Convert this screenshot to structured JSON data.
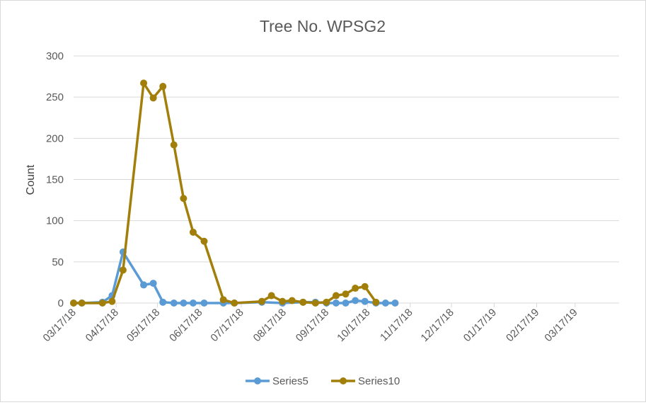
{
  "chart_data": {
    "type": "line",
    "title": "Tree No. WPSG2",
    "xlabel": "",
    "ylabel": "Count",
    "ylim": [
      0,
      300
    ],
    "yticks": [
      0,
      50,
      100,
      150,
      200,
      250,
      300
    ],
    "xlim": [
      "2018-03-17",
      "2019-04-18"
    ],
    "xticks": [
      "2018-03-17",
      "2018-04-17",
      "2018-05-17",
      "2018-06-17",
      "2018-07-17",
      "2018-08-17",
      "2018-09-17",
      "2018-10-17",
      "2018-11-17",
      "2018-12-17",
      "2019-01-17",
      "2019-02-17",
      "2019-03-17"
    ],
    "xtick_labels": [
      "03/17/18",
      "04/17/18",
      "05/17/18",
      "06/17/18",
      "07/17/18",
      "08/17/18",
      "09/17/18",
      "10/17/18",
      "11/17/18",
      "12/17/18",
      "01/17/19",
      "02/17/19",
      "03/17/19"
    ],
    "grid": true,
    "legend": "bottom",
    "series": [
      {
        "name": "Series5",
        "color": "#5b9bd5",
        "points": [
          [
            "2018-03-17",
            0
          ],
          [
            "2018-03-23",
            0
          ],
          [
            "2018-04-07",
            1
          ],
          [
            "2018-04-14",
            9
          ],
          [
            "2018-04-22",
            62
          ],
          [
            "2018-05-07",
            22
          ],
          [
            "2018-05-14",
            24
          ],
          [
            "2018-05-21",
            1
          ],
          [
            "2018-05-29",
            0
          ],
          [
            "2018-06-05",
            0
          ],
          [
            "2018-06-12",
            0
          ],
          [
            "2018-06-20",
            0
          ],
          [
            "2018-07-04",
            0
          ],
          [
            "2018-07-12",
            0
          ],
          [
            "2018-08-01",
            1
          ],
          [
            "2018-08-16",
            0
          ],
          [
            "2018-08-31",
            1
          ],
          [
            "2018-09-09",
            1
          ],
          [
            "2018-09-17",
            0
          ],
          [
            "2018-09-24",
            0
          ],
          [
            "2018-10-01",
            0
          ],
          [
            "2018-10-08",
            3
          ],
          [
            "2018-10-15",
            2
          ],
          [
            "2018-10-23",
            0
          ],
          [
            "2018-10-30",
            0
          ],
          [
            "2018-11-06",
            0
          ]
        ]
      },
      {
        "name": "Series10",
        "color": "#a17f0a",
        "points": [
          [
            "2018-03-17",
            0
          ],
          [
            "2018-03-23",
            0
          ],
          [
            "2018-04-07",
            0
          ],
          [
            "2018-04-14",
            2
          ],
          [
            "2018-04-22",
            40
          ],
          [
            "2018-05-07",
            267
          ],
          [
            "2018-05-14",
            249
          ],
          [
            "2018-05-21",
            263
          ],
          [
            "2018-05-29",
            192
          ],
          [
            "2018-06-05",
            127
          ],
          [
            "2018-06-12",
            86
          ],
          [
            "2018-06-20",
            75
          ],
          [
            "2018-07-04",
            4
          ],
          [
            "2018-07-12",
            0
          ],
          [
            "2018-08-01",
            2
          ],
          [
            "2018-08-08",
            9
          ],
          [
            "2018-08-16",
            2
          ],
          [
            "2018-08-23",
            3
          ],
          [
            "2018-08-31",
            1
          ],
          [
            "2018-09-09",
            0
          ],
          [
            "2018-09-17",
            1
          ],
          [
            "2018-09-24",
            9
          ],
          [
            "2018-10-01",
            11
          ],
          [
            "2018-10-08",
            18
          ],
          [
            "2018-10-15",
            20
          ],
          [
            "2018-10-23",
            1
          ]
        ]
      }
    ]
  }
}
